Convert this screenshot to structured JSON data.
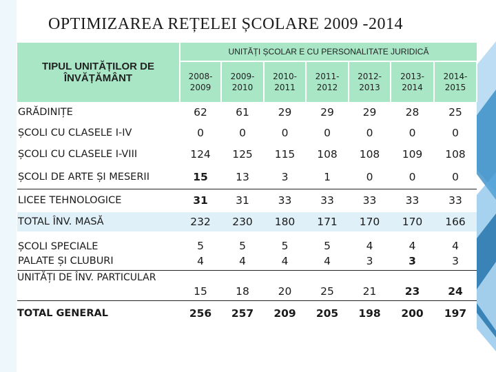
{
  "title": "OPTIMIZAREA  REȚELEI ȘCOLARE  2009 -2014",
  "table": {
    "corner_header": "TIPUL UNITĂȚILOR DE ÎNVĂȚĂMÂNT",
    "group_header": "UNITĂȚI   ȘCOLAR E  CU  PERSONALITATE  JURIDICĂ",
    "years": [
      "2008-2009",
      "2009-2010",
      "2010-2011",
      "2011-2012",
      "2012-2013",
      "2013-2014",
      "2014-2015"
    ],
    "rows": [
      {
        "label": "GRĂDINIȚE",
        "values": [
          "62",
          "61",
          "29",
          "29",
          "29",
          "28",
          "25"
        ]
      },
      {
        "label": "ȘCOLI  CU CLASELE I-IV",
        "values": [
          "0",
          "0",
          "0",
          "0",
          "0",
          "0",
          "0"
        ]
      },
      {
        "label": "ȘCOLI  CU CLASELE I-VIII",
        "values": [
          "124",
          "125",
          "115",
          "108",
          "108",
          "109",
          "108"
        ]
      },
      {
        "label": "ȘCOLI  DE ARTE ȘI MESERII",
        "values": [
          "15",
          "13",
          "3",
          "1",
          "0",
          "0",
          "0"
        ]
      },
      {
        "label": " LICEE TEHNOLOGICE",
        "values": [
          "31",
          "31",
          "33",
          "33",
          "33",
          "33",
          "33"
        ]
      },
      {
        "label": "TOTAL  ÎNV. MASĂ",
        "values": [
          "232",
          "230",
          "180",
          "171",
          "170",
          "170",
          "166"
        ]
      },
      {
        "label": "ȘCOLI   SPECIALE",
        "values": [
          "5",
          "5",
          "5",
          "5",
          "4",
          "4",
          "4"
        ]
      },
      {
        "label": "PALATE  ȘI  CLUBURI",
        "values": [
          "4",
          "4",
          "4",
          "4",
          "3",
          "3",
          "3"
        ]
      },
      {
        "label": "UNITĂȚI DE ÎNV. PARTICULAR",
        "values": [
          "15",
          "18",
          "20",
          "25",
          "21",
          "23",
          "24"
        ]
      },
      {
        "label": "TOTAL GENERAL",
        "values": [
          "256",
          "257",
          "209",
          "205",
          "198",
          "200",
          "197"
        ]
      }
    ]
  },
  "colors": {
    "header_green": "#a8e6c6",
    "masa_blue": "#dff0f8",
    "deco_blue_dark": "#2e86c1",
    "deco_blue_light": "#85c1e9"
  }
}
